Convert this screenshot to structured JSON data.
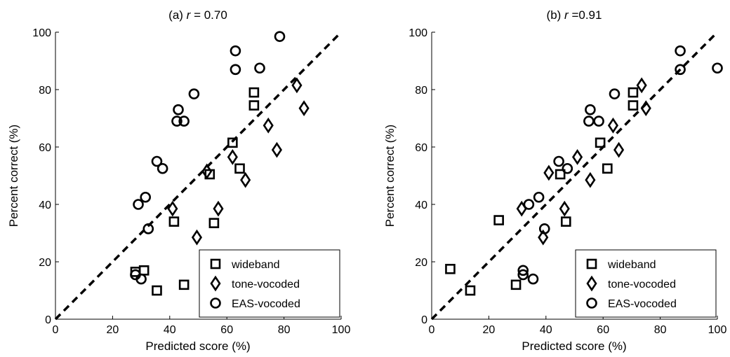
{
  "chart_data": [
    {
      "type": "scatter",
      "title_prefix": "(a)",
      "title_var": "r",
      "title_value": "= 0.70",
      "xlabel": "Predicted score (%)",
      "ylabel": "Percent correct (%)",
      "xlim": [
        0,
        100
      ],
      "ylim": [
        0,
        100
      ],
      "xticks": [
        0,
        20,
        40,
        60,
        80,
        100
      ],
      "yticks": [
        0,
        20,
        40,
        60,
        80,
        100
      ],
      "grid": false,
      "reference_line": {
        "style": "dashed",
        "from": [
          0,
          0
        ],
        "to": [
          100,
          100
        ]
      },
      "legend_position": "bottom-right",
      "series": [
        {
          "name": "wideband",
          "marker": "square",
          "points": [
            [
              28.0,
              16.5
            ],
            [
              31.0,
              17.0
            ],
            [
              35.5,
              10.0
            ],
            [
              41.5,
              34.0
            ],
            [
              45.0,
              12.0
            ],
            [
              55.5,
              33.5
            ],
            [
              54.0,
              50.5
            ],
            [
              62.0,
              61.5
            ],
            [
              64.5,
              52.5
            ],
            [
              69.5,
              79.0
            ],
            [
              69.5,
              74.5
            ]
          ]
        },
        {
          "name": "tone-vocoded",
          "marker": "diamond",
          "points": [
            [
              41.0,
              38.5
            ],
            [
              49.5,
              28.5
            ],
            [
              53.0,
              51.5
            ],
            [
              57.0,
              38.5
            ],
            [
              62.0,
              56.5
            ],
            [
              66.5,
              48.5
            ],
            [
              74.5,
              67.5
            ],
            [
              77.5,
              59.0
            ],
            [
              84.5,
              81.5
            ],
            [
              87.0,
              73.5
            ]
          ]
        },
        {
          "name": "EAS-vocoded",
          "marker": "circle",
          "points": [
            [
              28.0,
              15.5
            ],
            [
              29.0,
              40.0
            ],
            [
              30.0,
              14.0
            ],
            [
              31.5,
              42.5
            ],
            [
              32.5,
              31.5
            ],
            [
              35.5,
              55.0
            ],
            [
              37.5,
              52.5
            ],
            [
              42.5,
              69.0
            ],
            [
              43.0,
              73.0
            ],
            [
              45.0,
              69.0
            ],
            [
              48.5,
              78.5
            ],
            [
              63.0,
              93.5
            ],
            [
              63.0,
              87.0
            ],
            [
              71.5,
              87.5
            ],
            [
              78.5,
              98.5
            ]
          ]
        }
      ]
    },
    {
      "type": "scatter",
      "title_prefix": "(b)",
      "title_var": "r",
      "title_value": "=0.91",
      "xlabel": "Predicted score (%)",
      "ylabel": "Percent correct (%)",
      "xlim": [
        0,
        100
      ],
      "ylim": [
        0,
        100
      ],
      "xticks": [
        0,
        20,
        40,
        60,
        80,
        100
      ],
      "yticks": [
        0,
        20,
        40,
        60,
        80,
        100
      ],
      "grid": false,
      "reference_line": {
        "style": "dashed",
        "from": [
          0,
          0
        ],
        "to": [
          100,
          100
        ]
      },
      "legend_position": "bottom-right",
      "series": [
        {
          "name": "wideband",
          "marker": "square",
          "points": [
            [
              6.5,
              17.5
            ],
            [
              13.5,
              10.0
            ],
            [
              23.5,
              34.5
            ],
            [
              29.5,
              12.0
            ],
            [
              45.0,
              50.5
            ],
            [
              47.0,
              34.0
            ],
            [
              61.5,
              52.5
            ],
            [
              59.0,
              61.5
            ],
            [
              70.5,
              79.0
            ],
            [
              70.5,
              74.5
            ]
          ]
        },
        {
          "name": "tone-vocoded",
          "marker": "diamond",
          "points": [
            [
              31.5,
              38.5
            ],
            [
              39.0,
              28.5
            ],
            [
              41.0,
              51.0
            ],
            [
              46.5,
              38.5
            ],
            [
              51.0,
              56.5
            ],
            [
              55.5,
              48.5
            ],
            [
              63.5,
              67.5
            ],
            [
              65.5,
              59.0
            ],
            [
              73.5,
              81.5
            ],
            [
              75.0,
              73.5
            ]
          ]
        },
        {
          "name": "EAS-vocoded",
          "marker": "circle",
          "points": [
            [
              32.0,
              17.0
            ],
            [
              32.0,
              15.5
            ],
            [
              34.0,
              40.0
            ],
            [
              35.5,
              14.0
            ],
            [
              37.5,
              42.5
            ],
            [
              39.5,
              31.5
            ],
            [
              44.5,
              55.0
            ],
            [
              47.5,
              52.5
            ],
            [
              55.0,
              69.0
            ],
            [
              55.5,
              73.0
            ],
            [
              58.5,
              69.0
            ],
            [
              64.0,
              78.5
            ],
            [
              87.0,
              93.5
            ],
            [
              87.0,
              87.0
            ],
            [
              100.0,
              87.5
            ]
          ]
        }
      ]
    }
  ]
}
